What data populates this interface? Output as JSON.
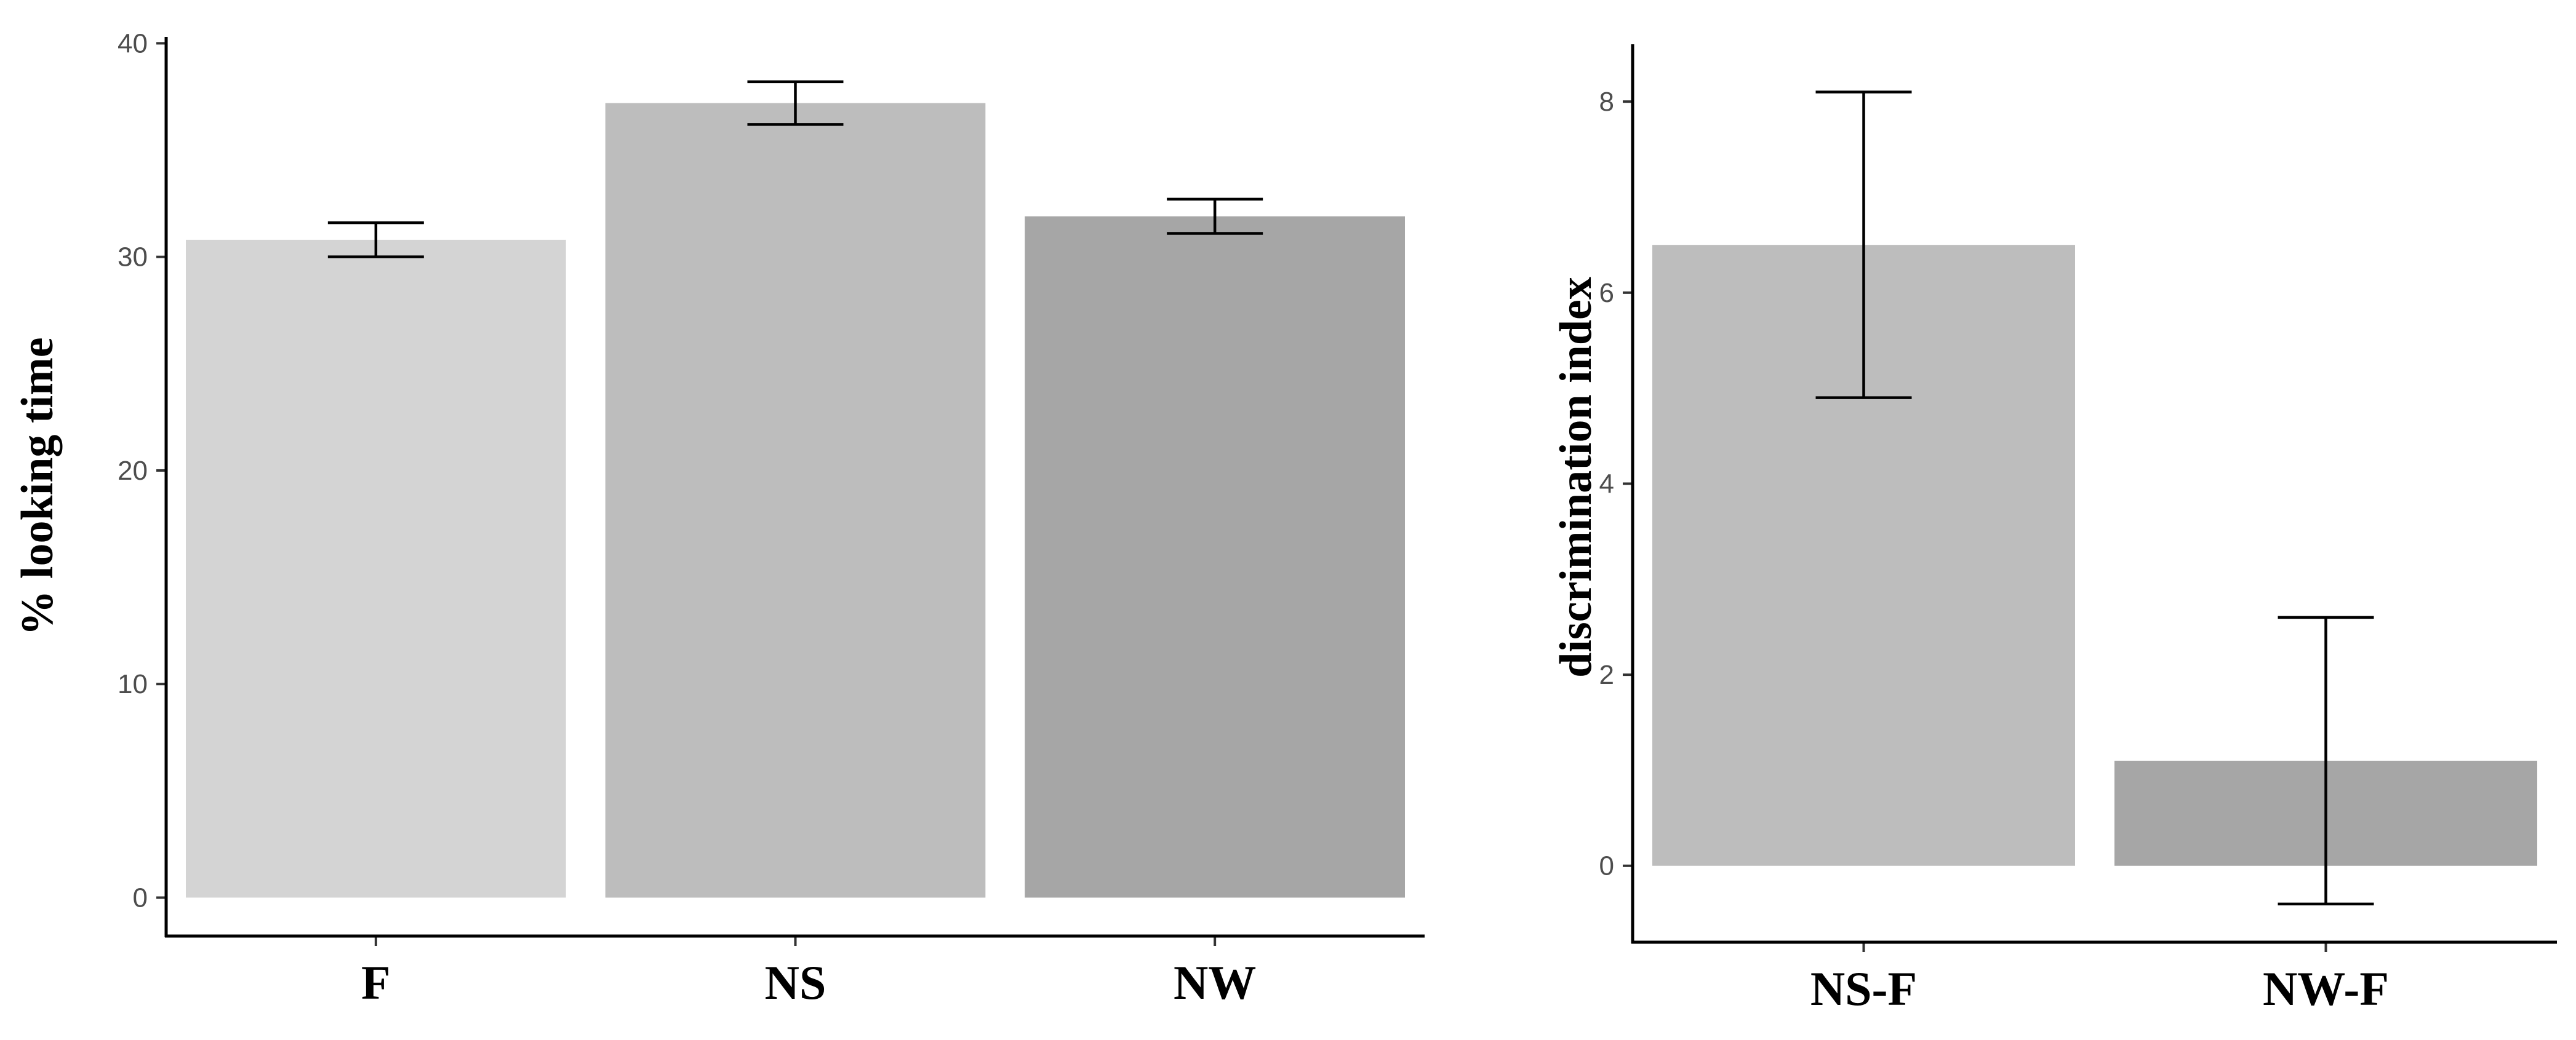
{
  "chart_data": [
    {
      "type": "bar",
      "ylabel": "% looking time",
      "xlabel": "",
      "categories": [
        "F",
        "NS",
        "NW"
      ],
      "values": [
        30.8,
        37.2,
        31.9
      ],
      "error_low": [
        30.0,
        36.2,
        31.1
      ],
      "error_high": [
        31.6,
        38.2,
        32.7
      ],
      "colors": [
        "#d4d4d4",
        "#bdbdbd",
        "#a6a6a6"
      ],
      "ylim": [
        -1.8,
        40.3
      ],
      "yticks": [
        0,
        10,
        20,
        30,
        40
      ],
      "grid": false
    },
    {
      "type": "bar",
      "ylabel": "discrimination index",
      "xlabel": "",
      "categories": [
        "NS-F",
        "NW-F"
      ],
      "values": [
        6.5,
        1.1
      ],
      "error_low": [
        4.9,
        -0.4
      ],
      "error_high": [
        8.1,
        2.6
      ],
      "colors": [
        "#bdbdbd",
        "#a6a6a6"
      ],
      "ylim": [
        -0.8,
        8.6
      ],
      "yticks": [
        0,
        2,
        4,
        6,
        8
      ],
      "grid": false
    }
  ]
}
